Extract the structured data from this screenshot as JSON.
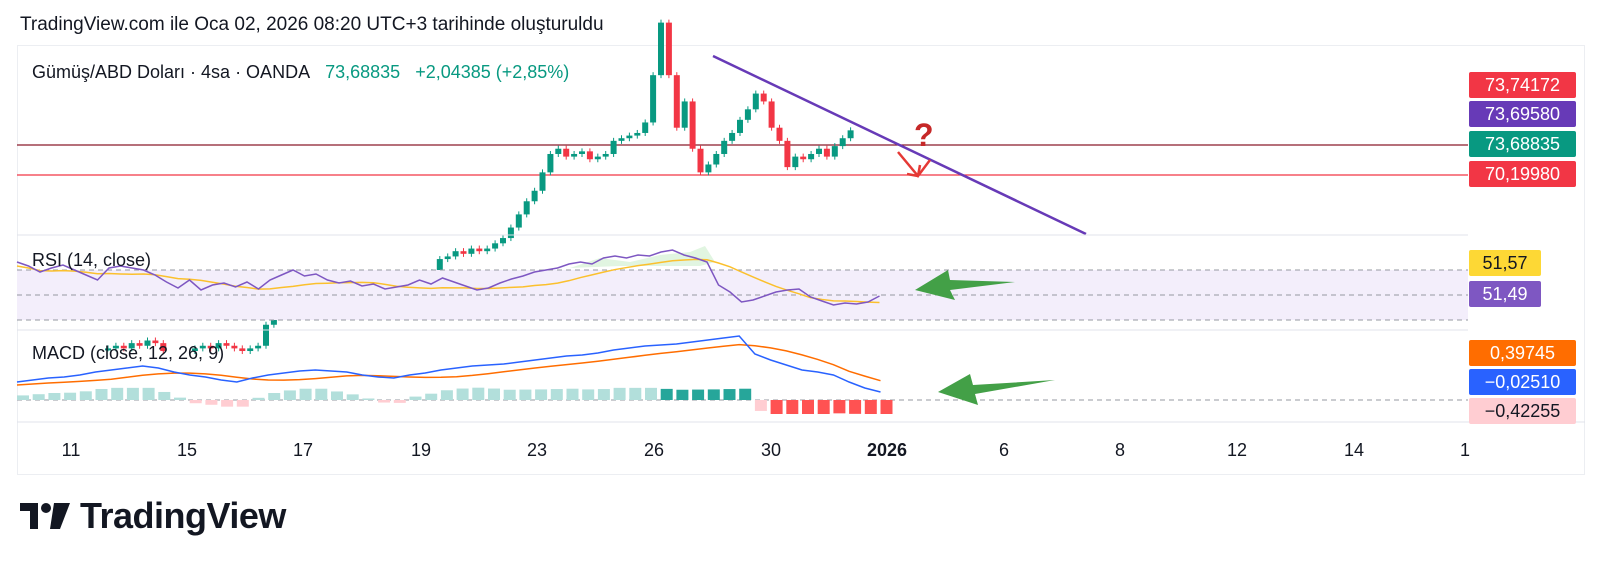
{
  "header": {
    "attribution": "TradingView.com ile Oca 02, 2026 08:20 UTC+3 tarihinde oluşturuldu"
  },
  "symbol": {
    "name": "Gümüş/ABD Doları · 4sa · OANDA",
    "price": "73,68835",
    "change": "+2,04385 (+2,85%)"
  },
  "price_tags": [
    {
      "label": "73,74172",
      "color": "#f23645"
    },
    {
      "label": "73,69580",
      "color": "#673ab7"
    },
    {
      "label": "73,68835",
      "color": "#089981"
    },
    {
      "label": "70,19980",
      "color": "#f23645"
    }
  ],
  "rsi": {
    "label": "RSI (14, close)",
    "tags": [
      {
        "label": "51,57",
        "color": "#fdd835",
        "text_color": "#131722"
      },
      {
        "label": "51,49",
        "color": "#7e57c2",
        "text_color": "#ffffff"
      }
    ]
  },
  "macd": {
    "label": "MACD (close, 12, 26, 9)",
    "tags": [
      {
        "label": "0,39745",
        "color": "#ff6d00",
        "text_color": "#ffffff"
      },
      {
        "label": "−0,02510",
        "color": "#2962ff",
        "text_color": "#ffffff"
      },
      {
        "label": "−0,42255",
        "color": "#ffcdd2",
        "text_color": "#131722"
      }
    ]
  },
  "x_axis": {
    "ticks": [
      "11",
      "15",
      "17",
      "19",
      "23",
      "26",
      "30",
      "2026",
      "6",
      "8",
      "12",
      "14",
      "1"
    ]
  },
  "footer": {
    "logo_text": "TradingView"
  },
  "chart_data": {
    "type": "candlestick",
    "symbol": "Gümüş/ABD Doları · 4sa · OANDA",
    "horizontal_levels": [
      73.68835,
      70.1998
    ],
    "trendline_color": "#673ab7",
    "annotation": "?",
    "x_tick_labels": [
      "11",
      "15",
      "17",
      "19",
      "23",
      "26",
      "30",
      "2026",
      "6",
      "8",
      "12",
      "14",
      "1"
    ],
    "y_tags": [
      73.74172,
      73.6958,
      73.68835,
      70.1998
    ],
    "rsi_values_shown": [
      51.57,
      51.49
    ],
    "macd_values_shown": [
      0.39745,
      -0.0251,
      -0.42255
    ]
  }
}
